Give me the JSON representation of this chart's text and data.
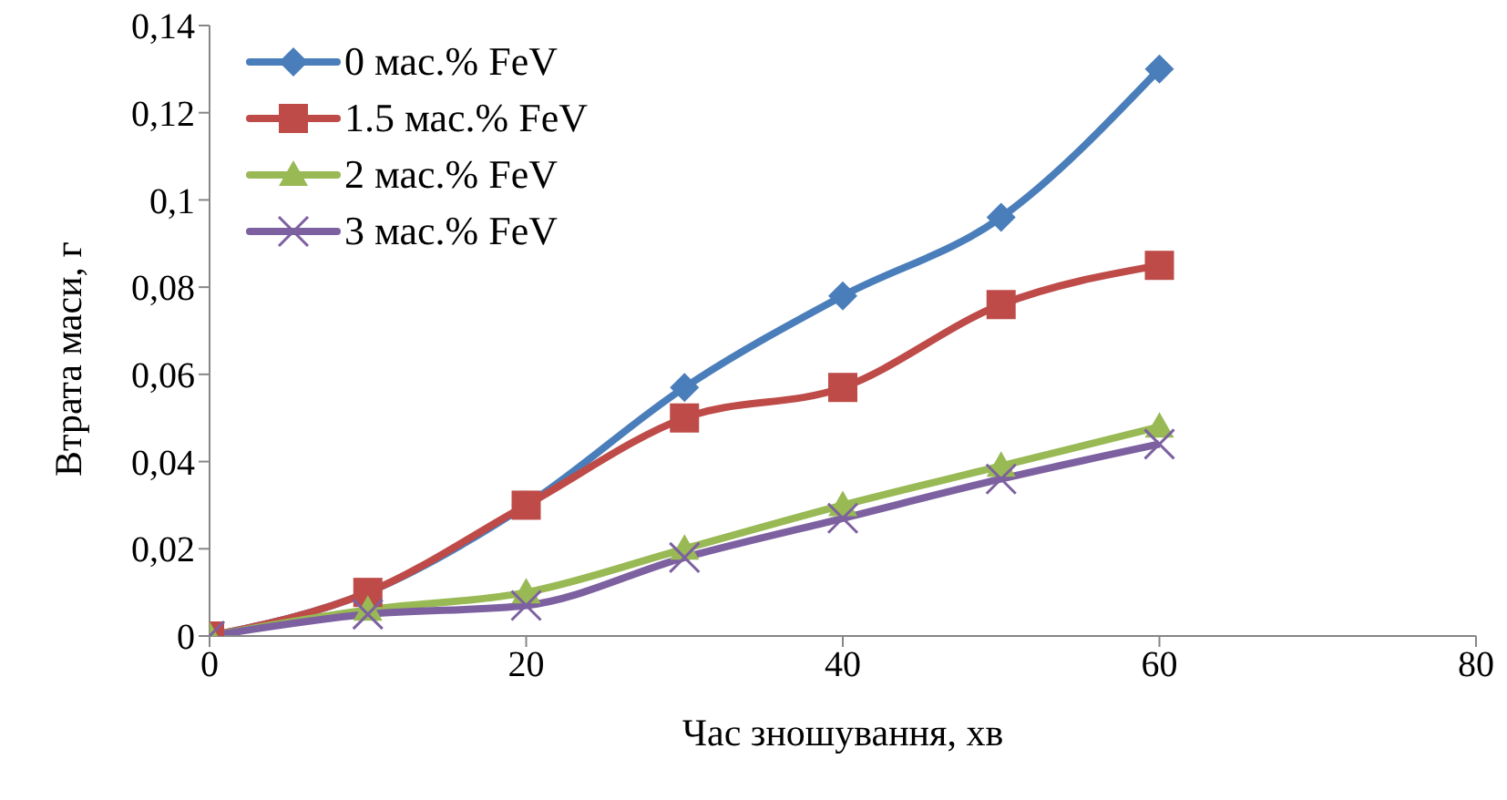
{
  "chart_data": {
    "type": "line",
    "xlabel": "Час зношування, хв",
    "ylabel": "Втрата маси, г",
    "x": [
      0,
      10,
      20,
      30,
      40,
      50,
      60
    ],
    "series": [
      {
        "name": "0 мас.% FeV",
        "color": "#4a7ebb",
        "marker": "diamond",
        "values": [
          0,
          0.01,
          0.03,
          0.057,
          0.078,
          0.096,
          0.13
        ]
      },
      {
        "name": "1.5 мас.% FeV",
        "color": "#be4b48",
        "marker": "square",
        "values": [
          0,
          0.01,
          0.03,
          0.05,
          0.057,
          0.076,
          0.085
        ]
      },
      {
        "name": "2 мас.% FeV",
        "color": "#98b954",
        "marker": "triangle",
        "values": [
          0,
          0.006,
          0.01,
          0.02,
          0.03,
          0.039,
          0.048
        ]
      },
      {
        "name": "3 мас.% FeV",
        "color": "#7d60a0",
        "marker": "cross",
        "values": [
          0,
          0.005,
          0.007,
          0.018,
          0.027,
          0.036,
          0.044
        ]
      }
    ],
    "xlim": [
      0,
      80
    ],
    "xticks": [
      0,
      20,
      40,
      60,
      80
    ],
    "ylim": [
      0,
      0.14
    ],
    "yticks": [
      0,
      {
        "value": 0.02,
        "label": "0,02"
      },
      {
        "value": 0.04,
        "label": "0,04"
      },
      {
        "value": 0.06,
        "label": "0,06"
      },
      {
        "value": 0.08,
        "label": "0,08"
      },
      {
        "value": 0.1,
        "label": "0,1"
      },
      {
        "value": 0.12,
        "label": "0,12"
      },
      {
        "value": 0.14,
        "label": "0,14"
      }
    ],
    "grid": false,
    "legend": "top left",
    "line_style": "solid"
  }
}
